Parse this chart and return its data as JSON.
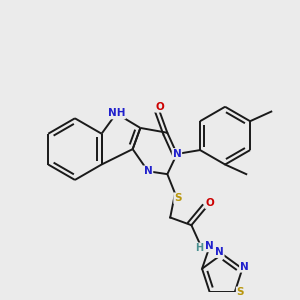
{
  "bg_color": "#ebebeb",
  "bond_color": "#1a1a1a",
  "bond_width": 1.4,
  "atom_colors": {
    "N": "#2020cc",
    "O": "#cc0000",
    "S": "#b8960c",
    "H": "#4a9090"
  },
  "fs": 7.5
}
